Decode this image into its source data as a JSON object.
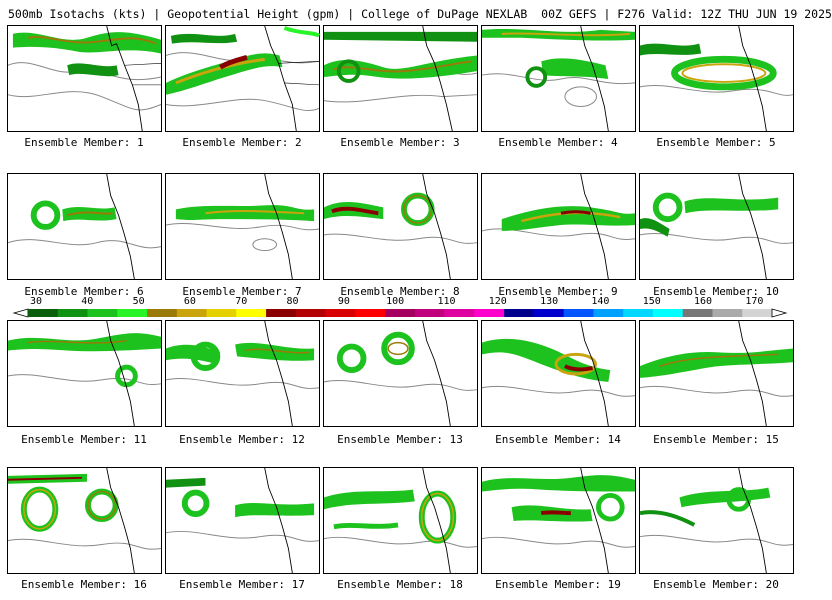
{
  "header": {
    "title": "500mb Isotachs (kts) | Geopotential Height (gpm) | College of DuPage NEXLAB",
    "run": "00Z GEFS | F276 Valid: 12Z THU JUN 19 2025"
  },
  "colorbar": {
    "ticks": [
      "30",
      "40",
      "50",
      "60",
      "70",
      "80",
      "90",
      "100",
      "110",
      "120",
      "130",
      "140",
      "150",
      "160",
      "170"
    ],
    "colors": [
      "#0b5e0b",
      "#119111",
      "#1ec21e",
      "#28f428",
      "#9a7a08",
      "#c9a40c",
      "#e6d100",
      "#ffff00",
      "#8a0000",
      "#b30000",
      "#d80000",
      "#ff0000",
      "#a3005f",
      "#c2007e",
      "#e000a0",
      "#ff00cc",
      "#00008c",
      "#0000cc",
      "#0055ff",
      "#00a0ff",
      "#00d8ff",
      "#00ffff",
      "#777777",
      "#aaaaaa",
      "#d4d4d4"
    ]
  },
  "members": [
    {
      "label": "Ensemble Member: 1"
    },
    {
      "label": "Ensemble Member: 2"
    },
    {
      "label": "Ensemble Member: 3"
    },
    {
      "label": "Ensemble Member: 4"
    },
    {
      "label": "Ensemble Member: 5"
    },
    {
      "label": "Ensemble Member: 6"
    },
    {
      "label": "Ensemble Member: 7"
    },
    {
      "label": "Ensemble Member: 8"
    },
    {
      "label": "Ensemble Member: 9"
    },
    {
      "label": "Ensemble Member: 10"
    },
    {
      "label": "Ensemble Member: 11"
    },
    {
      "label": "Ensemble Member: 12"
    },
    {
      "label": "Ensemble Member: 13"
    },
    {
      "label": "Ensemble Member: 14"
    },
    {
      "label": "Ensemble Member: 15"
    },
    {
      "label": "Ensemble Member: 16"
    },
    {
      "label": "Ensemble Member: 17"
    },
    {
      "label": "Ensemble Member: 18"
    },
    {
      "label": "Ensemble Member: 19"
    },
    {
      "label": "Ensemble Member: 20"
    }
  ]
}
